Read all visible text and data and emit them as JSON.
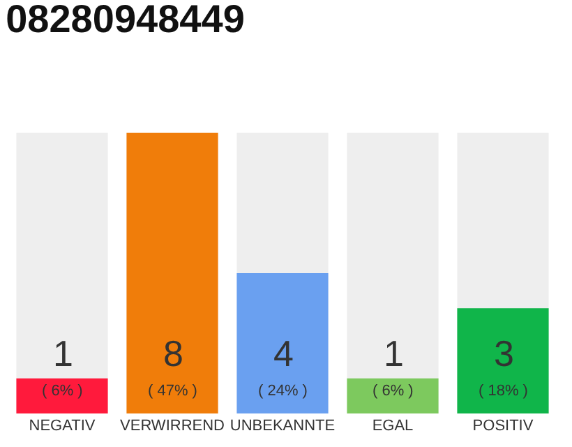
{
  "chart_data": {
    "type": "bar",
    "title": "08280948449",
    "categories": [
      "NEGATIV",
      "VERWIRREND",
      "UNBEKANNTE",
      "EGAL",
      "POSITIV"
    ],
    "values": [
      1,
      8,
      4,
      1,
      3
    ],
    "colors": [
      "#ff1a3c",
      "#f07d0a",
      "#6aa0f0",
      "#7dc95e",
      "#10b54a"
    ],
    "value_labels": [
      "1\n( 6% )",
      "8\n( 47% )",
      "4\n( 24% )",
      "1\n( 6% )",
      "3\n( 18% )"
    ],
    "grid": false,
    "legend": false
  }
}
